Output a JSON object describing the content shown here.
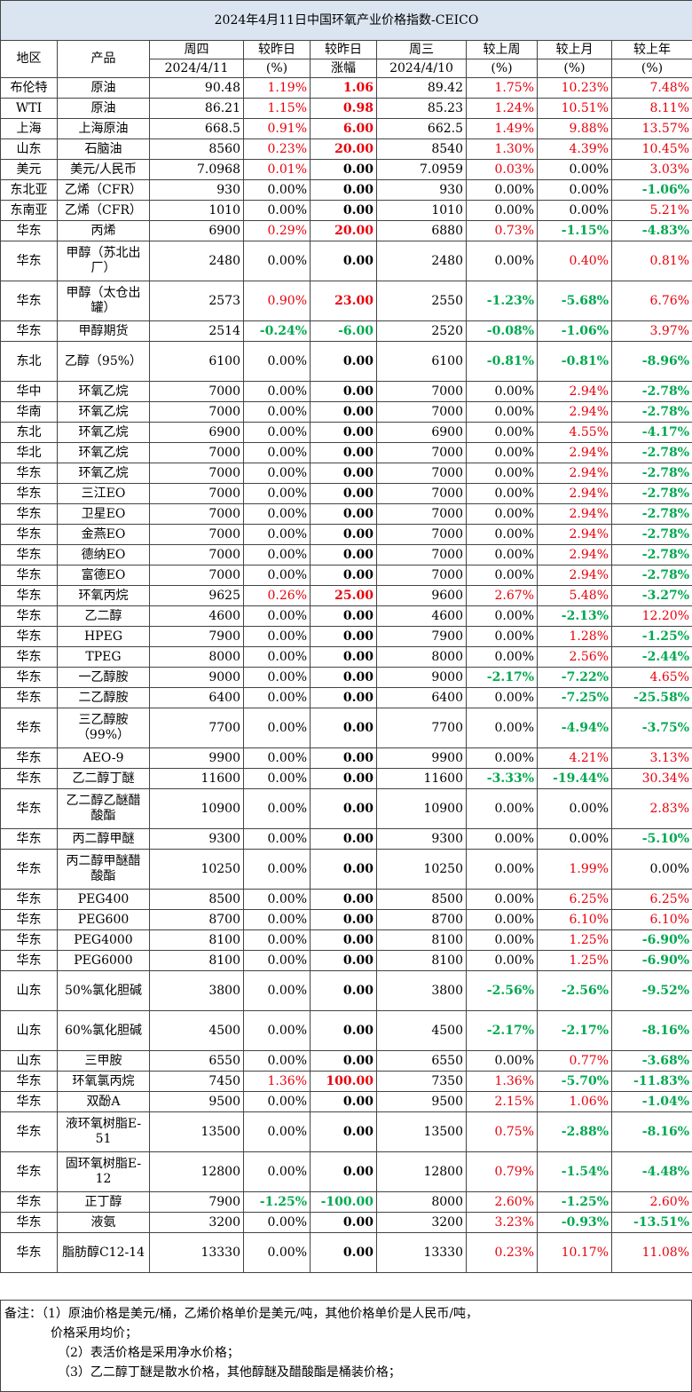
{
  "title": "2024年4月11日中国环氧产业价格指数-CEICO",
  "headers": {
    "region": "地区",
    "product": "产品",
    "thu": "周四",
    "thu_date": "2024/4/11",
    "dod_pct": "较昨日",
    "dod_pct_unit": "(%)",
    "dod_amt": "较昨日",
    "dod_amt_unit": "涨幅",
    "wed": "周三",
    "wed_date": "2024/4/10",
    "wow": "较上周",
    "wow_unit": "(%)",
    "mom": "较上月",
    "mom_unit": "(%)",
    "yoy": "较上年",
    "yoy_unit": "(%)"
  },
  "rows": [
    {
      "region": "布伦特",
      "product": "原油",
      "thu": "90.48",
      "dod_pct": "1.19%",
      "dod_amt": "1.06",
      "wed": "89.42",
      "wow": "1.75%",
      "mom": "10.23%",
      "yoy": "7.48%"
    },
    {
      "region": "WTI",
      "product": "原油",
      "thu": "86.21",
      "dod_pct": "1.15%",
      "dod_amt": "0.98",
      "wed": "85.23",
      "wow": "1.24%",
      "mom": "10.51%",
      "yoy": "8.11%"
    },
    {
      "region": "上海",
      "product": "上海原油",
      "thu": "668.5",
      "dod_pct": "0.91%",
      "dod_amt": "6.00",
      "wed": "662.5",
      "wow": "1.49%",
      "mom": "9.88%",
      "yoy": "13.57%"
    },
    {
      "region": "山东",
      "product": "石脑油",
      "thu": "8560",
      "dod_pct": "0.23%",
      "dod_amt": "20.00",
      "wed": "8540",
      "wow": "1.30%",
      "mom": "4.39%",
      "yoy": "10.45%"
    },
    {
      "region": "美元",
      "product": "美元/人民币",
      "thu": "7.0968",
      "dod_pct": "0.01%",
      "dod_amt": "0.00",
      "wed": "7.0959",
      "wow": "0.03%",
      "mom": "0.00%",
      "yoy": "3.03%"
    },
    {
      "region": "东北亚",
      "product": "乙烯（CFR）",
      "thu": "930",
      "dod_pct": "0.00%",
      "dod_amt": "0.00",
      "wed": "930",
      "wow": "0.00%",
      "mom": "0.00%",
      "yoy": "-1.06%"
    },
    {
      "region": "东南亚",
      "product": "乙烯（CFR）",
      "thu": "1010",
      "dod_pct": "0.00%",
      "dod_amt": "0.00",
      "wed": "1010",
      "wow": "0.00%",
      "mom": "0.00%",
      "yoy": "5.21%"
    },
    {
      "region": "华东",
      "product": "丙烯",
      "thu": "6900",
      "dod_pct": "0.29%",
      "dod_amt": "20.00",
      "wed": "6880",
      "wow": "0.73%",
      "mom": "-1.15%",
      "yoy": "-4.83%"
    },
    {
      "region": "华东",
      "product": "甲醇（苏北出厂）",
      "thu": "2480",
      "dod_pct": "0.00%",
      "dod_amt": "0.00",
      "wed": "2480",
      "wow": "0.00%",
      "mom": "0.40%",
      "yoy": "0.81%"
    },
    {
      "region": "华东",
      "product": "甲醇（太仓出罐）",
      "thu": "2573",
      "dod_pct": "0.90%",
      "dod_amt": "23.00",
      "wed": "2550",
      "wow": "-1.23%",
      "mom": "-5.68%",
      "yoy": "6.76%"
    },
    {
      "region": "华东",
      "product": "甲醇期货",
      "thu": "2514",
      "dod_pct": "-0.24%",
      "dod_amt": "-6.00",
      "wed": "2520",
      "wow": "-0.08%",
      "mom": "-1.06%",
      "yoy": "3.97%"
    },
    {
      "region": "东北",
      "product": "乙醇（95%）",
      "thu": "6100",
      "dod_pct": "0.00%",
      "dod_amt": "0.00",
      "wed": "6100",
      "wow": "-0.81%",
      "mom": "-0.81%",
      "yoy": "-8.96%"
    },
    {
      "region": "华中",
      "product": "环氧乙烷",
      "thu": "7000",
      "dod_pct": "0.00%",
      "dod_amt": "0.00",
      "wed": "7000",
      "wow": "0.00%",
      "mom": "2.94%",
      "yoy": "-2.78%"
    },
    {
      "region": "华南",
      "product": "环氧乙烷",
      "thu": "7000",
      "dod_pct": "0.00%",
      "dod_amt": "0.00",
      "wed": "7000",
      "wow": "0.00%",
      "mom": "2.94%",
      "yoy": "-2.78%"
    },
    {
      "region": "东北",
      "product": "环氧乙烷",
      "thu": "6900",
      "dod_pct": "0.00%",
      "dod_amt": "0.00",
      "wed": "6900",
      "wow": "0.00%",
      "mom": "4.55%",
      "yoy": "-4.17%"
    },
    {
      "region": "华北",
      "product": "环氧乙烷",
      "thu": "7000",
      "dod_pct": "0.00%",
      "dod_amt": "0.00",
      "wed": "7000",
      "wow": "0.00%",
      "mom": "2.94%",
      "yoy": "-2.78%"
    },
    {
      "region": "华东",
      "product": "环氧乙烷",
      "thu": "7000",
      "dod_pct": "0.00%",
      "dod_amt": "0.00",
      "wed": "7000",
      "wow": "0.00%",
      "mom": "2.94%",
      "yoy": "-2.78%"
    },
    {
      "region": "华东",
      "product": "三江EO",
      "thu": "7000",
      "dod_pct": "0.00%",
      "dod_amt": "0.00",
      "wed": "7000",
      "wow": "0.00%",
      "mom": "2.94%",
      "yoy": "-2.78%"
    },
    {
      "region": "华东",
      "product": "卫星EO",
      "thu": "7000",
      "dod_pct": "0.00%",
      "dod_amt": "0.00",
      "wed": "7000",
      "wow": "0.00%",
      "mom": "2.94%",
      "yoy": "-2.78%"
    },
    {
      "region": "华东",
      "product": "金燕EO",
      "thu": "7000",
      "dod_pct": "0.00%",
      "dod_amt": "0.00",
      "wed": "7000",
      "wow": "0.00%",
      "mom": "2.94%",
      "yoy": "-2.78%"
    },
    {
      "region": "华东",
      "product": "德纳EO",
      "thu": "7000",
      "dod_pct": "0.00%",
      "dod_amt": "0.00",
      "wed": "7000",
      "wow": "0.00%",
      "mom": "2.94%",
      "yoy": "-2.78%"
    },
    {
      "region": "华东",
      "product": "富德EO",
      "thu": "7000",
      "dod_pct": "0.00%",
      "dod_amt": "0.00",
      "wed": "7000",
      "wow": "0.00%",
      "mom": "2.94%",
      "yoy": "-2.78%"
    },
    {
      "region": "华东",
      "product": "环氧丙烷",
      "thu": "9625",
      "dod_pct": "0.26%",
      "dod_amt": "25.00",
      "wed": "9600",
      "wow": "2.67%",
      "mom": "5.48%",
      "yoy": "-3.27%"
    },
    {
      "region": "华东",
      "product": "乙二醇",
      "thu": "4600",
      "dod_pct": "0.00%",
      "dod_amt": "0.00",
      "wed": "4600",
      "wow": "0.00%",
      "mom": "-2.13%",
      "yoy": "12.20%"
    },
    {
      "region": "华东",
      "product": "HPEG",
      "thu": "7900",
      "dod_pct": "0.00%",
      "dod_amt": "0.00",
      "wed": "7900",
      "wow": "0.00%",
      "mom": "1.28%",
      "yoy": "-1.25%"
    },
    {
      "region": "华东",
      "product": "TPEG",
      "thu": "8000",
      "dod_pct": "0.00%",
      "dod_amt": "0.00",
      "wed": "8000",
      "wow": "0.00%",
      "mom": "2.56%",
      "yoy": "-2.44%"
    },
    {
      "region": "华东",
      "product": "一乙醇胺",
      "thu": "9000",
      "dod_pct": "0.00%",
      "dod_amt": "0.00",
      "wed": "9000",
      "wow": "-2.17%",
      "mom": "-7.22%",
      "yoy": "4.65%"
    },
    {
      "region": "华东",
      "product": "二乙醇胺",
      "thu": "6400",
      "dod_pct": "0.00%",
      "dod_amt": "0.00",
      "wed": "6400",
      "wow": "0.00%",
      "mom": "-7.25%",
      "yoy": "-25.58%"
    },
    {
      "region": "华东",
      "product": "三乙醇胺（99%）",
      "thu": "7700",
      "dod_pct": "0.00%",
      "dod_amt": "0.00",
      "wed": "7700",
      "wow": "0.00%",
      "mom": "-4.94%",
      "yoy": "-3.75%"
    },
    {
      "region": "华东",
      "product": "AEO-9",
      "thu": "9900",
      "dod_pct": "0.00%",
      "dod_amt": "0.00",
      "wed": "9900",
      "wow": "0.00%",
      "mom": "4.21%",
      "yoy": "3.13%"
    },
    {
      "region": "华东",
      "product": "乙二醇丁醚",
      "thu": "11600",
      "dod_pct": "0.00%",
      "dod_amt": "0.00",
      "wed": "11600",
      "wow": "-3.33%",
      "mom": "-19.44%",
      "yoy": "30.34%"
    },
    {
      "region": "华东",
      "product": "乙二醇乙醚醋酸酯",
      "thu": "10900",
      "dod_pct": "0.00%",
      "dod_amt": "0.00",
      "wed": "10900",
      "wow": "0.00%",
      "mom": "0.00%",
      "yoy": "2.83%"
    },
    {
      "region": "华东",
      "product": "丙二醇甲醚",
      "thu": "9300",
      "dod_pct": "0.00%",
      "dod_amt": "0.00",
      "wed": "9300",
      "wow": "0.00%",
      "mom": "0.00%",
      "yoy": "-5.10%"
    },
    {
      "region": "华东",
      "product": "丙二醇甲醚醋酸酯",
      "thu": "10250",
      "dod_pct": "0.00%",
      "dod_amt": "0.00",
      "wed": "10250",
      "wow": "0.00%",
      "mom": "1.99%",
      "yoy": "0.00%"
    },
    {
      "region": "华东",
      "product": "PEG400",
      "thu": "8500",
      "dod_pct": "0.00%",
      "dod_amt": "0.00",
      "wed": "8500",
      "wow": "0.00%",
      "mom": "6.25%",
      "yoy": "6.25%"
    },
    {
      "region": "华东",
      "product": "PEG600",
      "thu": "8700",
      "dod_pct": "0.00%",
      "dod_amt": "0.00",
      "wed": "8700",
      "wow": "0.00%",
      "mom": "6.10%",
      "yoy": "6.10%"
    },
    {
      "region": "华东",
      "product": "PEG4000",
      "thu": "8100",
      "dod_pct": "0.00%",
      "dod_amt": "0.00",
      "wed": "8100",
      "wow": "0.00%",
      "mom": "1.25%",
      "yoy": "-6.90%"
    },
    {
      "region": "华东",
      "product": "PEG6000",
      "thu": "8100",
      "dod_pct": "0.00%",
      "dod_amt": "0.00",
      "wed": "8100",
      "wow": "0.00%",
      "mom": "1.25%",
      "yoy": "-6.90%"
    },
    {
      "region": "山东",
      "product": "50%氯化胆碱",
      "thu": "3800",
      "dod_pct": "0.00%",
      "dod_amt": "0.00",
      "wed": "3800",
      "wow": "-2.56%",
      "mom": "-2.56%",
      "yoy": "-9.52%"
    },
    {
      "region": "山东",
      "product": "60%氯化胆碱",
      "thu": "4500",
      "dod_pct": "0.00%",
      "dod_amt": "0.00",
      "wed": "4500",
      "wow": "-2.17%",
      "mom": "-2.17%",
      "yoy": "-8.16%"
    },
    {
      "region": "山东",
      "product": "三甲胺",
      "thu": "6550",
      "dod_pct": "0.00%",
      "dod_amt": "0.00",
      "wed": "6550",
      "wow": "0.00%",
      "mom": "0.77%",
      "yoy": "-3.68%"
    },
    {
      "region": "华东",
      "product": "环氧氯丙烷",
      "thu": "7450",
      "dod_pct": "1.36%",
      "dod_amt": "100.00",
      "wed": "7350",
      "wow": "1.36%",
      "mom": "-5.70%",
      "yoy": "-11.83%"
    },
    {
      "region": "华东",
      "product": "双酚A",
      "thu": "9500",
      "dod_pct": "0.00%",
      "dod_amt": "0.00",
      "wed": "9500",
      "wow": "2.15%",
      "mom": "1.06%",
      "yoy": "-1.04%"
    },
    {
      "region": "华东",
      "product": "液环氧树脂E-51",
      "thu": "13500",
      "dod_pct": "0.00%",
      "dod_amt": "0.00",
      "wed": "13500",
      "wow": "0.75%",
      "mom": "-2.88%",
      "yoy": "-8.16%"
    },
    {
      "region": "华东",
      "product": "固环氧树脂E-12",
      "thu": "12800",
      "dod_pct": "0.00%",
      "dod_amt": "0.00",
      "wed": "12800",
      "wow": "0.79%",
      "mom": "-1.54%",
      "yoy": "-4.48%"
    },
    {
      "region": "华东",
      "product": "正丁醇",
      "thu": "7900",
      "dod_pct": "-1.25%",
      "dod_amt": "-100.00",
      "wed": "8000",
      "wow": "2.60%",
      "mom": "-1.25%",
      "yoy": "2.60%"
    },
    {
      "region": "华东",
      "product": "液氨",
      "thu": "3200",
      "dod_pct": "0.00%",
      "dod_amt": "0.00",
      "wed": "3200",
      "wow": "3.23%",
      "mom": "-0.93%",
      "yoy": "-13.51%"
    },
    {
      "region": "华东",
      "product": "脂肪醇C12-14",
      "thu": "13330",
      "dod_pct": "0.00%",
      "dod_amt": "0.00",
      "wed": "13330",
      "wow": "0.23%",
      "mom": "10.17%",
      "yoy": "11.08%"
    }
  ],
  "notes": {
    "n1a": "备注：（1）原油价格是美元/桶，乙烯价格单价是美元/吨，其他价格单价是人民币/吨，",
    "n1b": "价格采用均价；",
    "n2": "（2）表活价格是采用净水价格；",
    "n3": "（3）乙二醇丁醚是散水价格，其他醇醚及醋酸酯是桶装价格；"
  },
  "colors": {
    "up": "#e8000b",
    "down": "#00a84f",
    "title_bg": "#dbe5f1"
  }
}
